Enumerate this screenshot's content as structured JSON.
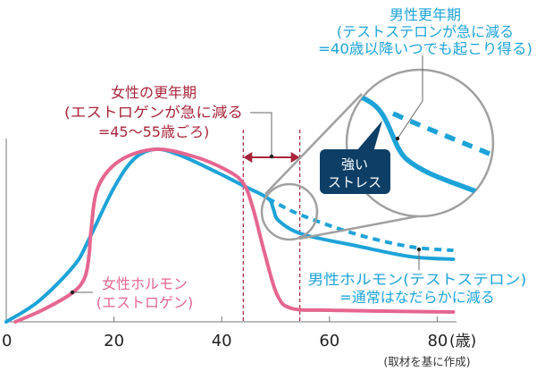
{
  "chart_data": {
    "type": "line",
    "title": "",
    "xlabel": "",
    "x_unit": "(歳)",
    "ylabel": "",
    "xlim": [
      0,
      83
    ],
    "ylim": [
      0,
      100
    ],
    "xticks": [
      0,
      20,
      40,
      60,
      80
    ],
    "xtick_labels": [
      "0",
      "20",
      "40",
      "60",
      "80"
    ],
    "grid": false,
    "series": [
      {
        "name": "女性ホルモン(エストロゲン)",
        "color": "#e5668f",
        "style": "solid",
        "points": [
          [
            1.7,
            0
          ],
          [
            7,
            7
          ],
          [
            12.4,
            16.5
          ],
          [
            14.6,
            25
          ],
          [
            15.4,
            38
          ],
          [
            15.7,
            50
          ],
          [
            17,
            75
          ],
          [
            21,
            90
          ],
          [
            27.6,
            96.5
          ],
          [
            34.8,
            92.5
          ],
          [
            40.8,
            85
          ],
          [
            44,
            77.5
          ],
          [
            45.8,
            63.5
          ],
          [
            48,
            38
          ],
          [
            50.3,
            15
          ],
          [
            53,
            7.5
          ],
          [
            60,
            6.5
          ],
          [
            70,
            6
          ],
          [
            83,
            5.5
          ]
        ]
      },
      {
        "name": "男性ホルモン(テストステロン)",
        "color": "#1ea3d8",
        "style": "solid",
        "points": [
          [
            0,
            0
          ],
          [
            6,
            11.5
          ],
          [
            12.6,
            31.5
          ],
          [
            15.4,
            46.5
          ],
          [
            20,
            75
          ],
          [
            23.7,
            91
          ],
          [
            27.6,
            96.5
          ],
          [
            32,
            93.5
          ],
          [
            39.2,
            83.5
          ],
          [
            44.1,
            76
          ],
          [
            48.6,
            69
          ],
          [
            49.6,
            63
          ],
          [
            50.6,
            56.5
          ],
          [
            55,
            49
          ],
          [
            65,
            42.5
          ],
          [
            75,
            36.5
          ],
          [
            83,
            35
          ]
        ]
      },
      {
        "name": "",
        "color": "#1ea3d8",
        "style": "dashed",
        "points": [
          [
            48.6,
            69
          ],
          [
            54.5,
            60
          ],
          [
            65,
            49
          ],
          [
            75,
            42
          ],
          [
            83,
            40
          ]
        ]
      }
    ],
    "annotations": {
      "female_menopause": {
        "lines": [
          "女性の更年期",
          "(エストロゲンが急に減る",
          "=45〜55歳ごろ)"
        ],
        "range": [
          44,
          54.5
        ],
        "color": "#a8243b"
      },
      "male_menopause": {
        "lines": [
          "男性更年期",
          "(テストステロンが急に減る",
          "=40歳以降いつでも起こり得る)"
        ],
        "color": "#1ea3d8"
      },
      "stress_badge": {
        "lines": [
          "強い",
          "ストレス"
        ],
        "color": "#0d3f66"
      },
      "female_label": {
        "lines": [
          "女性ホルモン",
          "(エストロゲン)"
        ]
      },
      "male_label": {
        "lines": [
          "男性ホルモン(テストステロン)",
          "=通常はなだらかに減る"
        ]
      }
    },
    "source_note": "(取材を基に作成)"
  }
}
